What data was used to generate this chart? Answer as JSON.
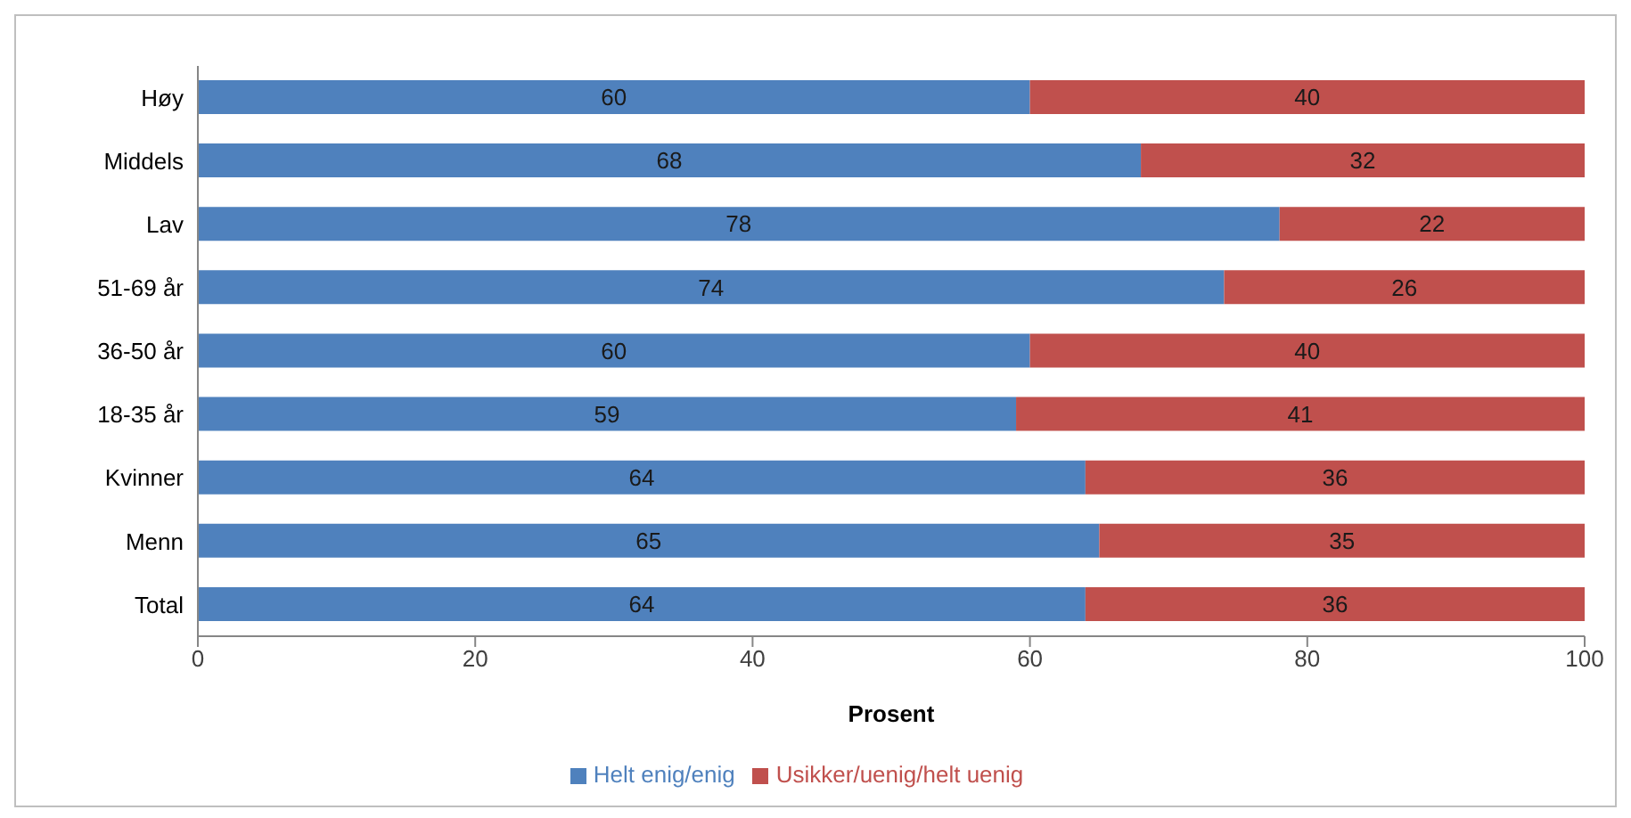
{
  "chart_data": {
    "type": "bar",
    "orientation": "horizontal",
    "stacked": true,
    "xlabel": "Prosent",
    "categories": [
      "Høy",
      "Middels",
      "Lav",
      "51-69 år",
      "36-50 år",
      "18-35 år",
      "Kvinner",
      "Menn",
      "Total"
    ],
    "series": [
      {
        "name": "Helt enig/enig",
        "color": "#4f81bd",
        "values": [
          60,
          68,
          78,
          74,
          60,
          59,
          64,
          65,
          64
        ]
      },
      {
        "name": "Usikker/uenig/helt uenig",
        "color": "#c0504d",
        "values": [
          40,
          32,
          22,
          26,
          40,
          41,
          36,
          35,
          36
        ]
      }
    ],
    "xlim": [
      0,
      100
    ],
    "xticks": [
      0,
      20,
      40,
      60,
      80,
      100
    ],
    "data_labels": true,
    "legend": "bottom",
    "grid": false
  }
}
